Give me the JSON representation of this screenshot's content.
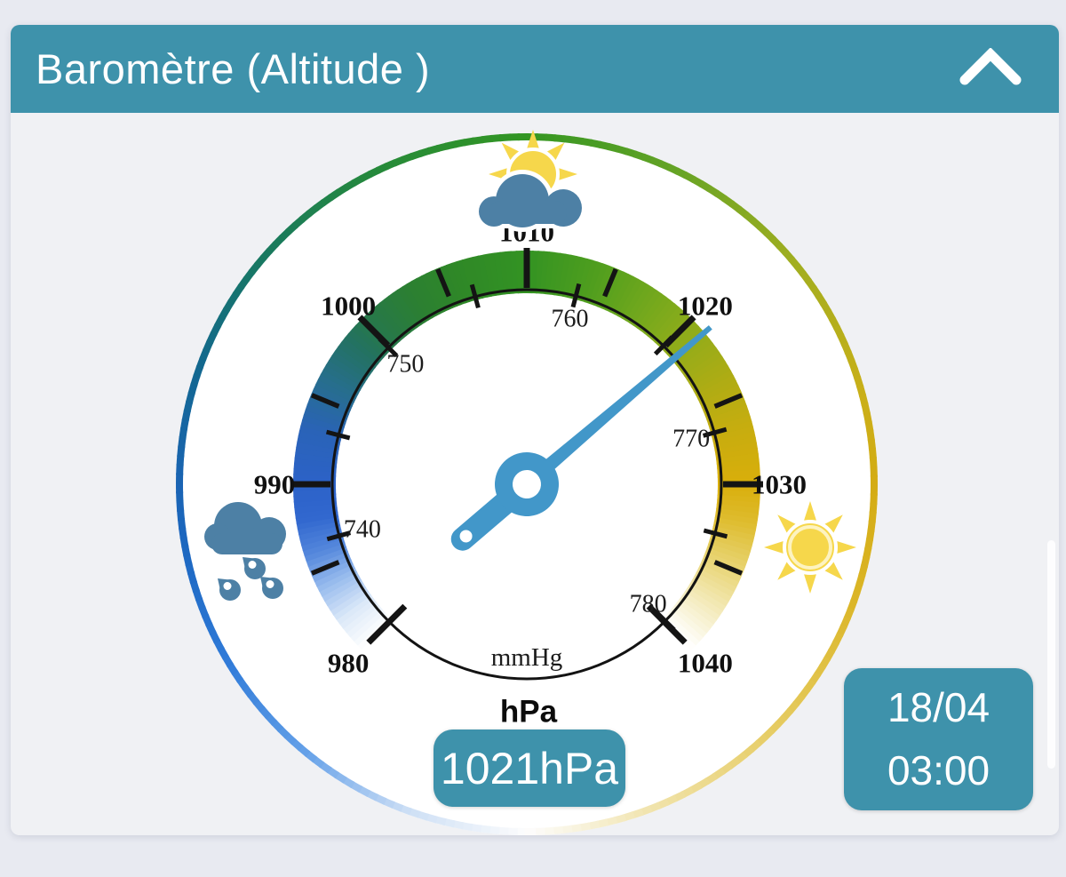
{
  "header": {
    "title": "Baromètre (Altitude )",
    "collapse_icon": "chevron-up"
  },
  "reading": {
    "value": "1021hPa"
  },
  "datetime": {
    "date": "18/04",
    "time": "03:00"
  },
  "gauge": {
    "outer_unit": "hPa",
    "inner_unit": "mmHg"
  },
  "weather_icons": {
    "top": "sun-behind-cloud",
    "left": "rain-cloud",
    "right": "sun"
  },
  "colors": {
    "accent_teal": "#3e92ab",
    "needle_blue": "#4297c9",
    "cloud_blue": "#4d80a5",
    "sun_yellow": "#f6d74b",
    "card_bg": "#f0f1f4",
    "page_bg": "#e8eaf1"
  },
  "chart_data": {
    "type": "gauge",
    "title": "Baromètre (Altitude )",
    "value_hpa": 1021,
    "value_display": "1021hPa",
    "timestamp": {
      "date": "18/04",
      "time": "03:00"
    },
    "outer_scale": {
      "unit": "hPa",
      "min": 980,
      "max": 1040,
      "labels": [
        980,
        990,
        1000,
        1010,
        1020,
        1030,
        1040
      ],
      "major_ticks": [
        990,
        1000,
        1010,
        1020,
        1030
      ],
      "end_ticks": [
        980,
        1040
      ],
      "minor_ticks": [
        985,
        995,
        1005,
        1015,
        1025,
        1035
      ]
    },
    "inner_scale": {
      "unit": "mmHg",
      "labels": [
        740,
        750,
        760,
        770,
        780
      ],
      "ticks": [
        740,
        745,
        750,
        755,
        760,
        765,
        770,
        775,
        780
      ],
      "mmhg_to_hpa": 1.3332239
    },
    "geometry": {
      "top_value": 1010,
      "deg_per_hpa": 4.5,
      "sweep_deg": 270
    },
    "needle_color": "#4297c9",
    "band_color_stops": [
      [
        -135,
        "#ffffff"
      ],
      [
        -126,
        "#dce9f8"
      ],
      [
        -117,
        "#9abdee"
      ],
      [
        -108,
        "#5588dc"
      ],
      [
        -99,
        "#3268cf"
      ],
      [
        -90,
        "#2c62c8"
      ],
      [
        -76,
        "#2a63b8"
      ],
      [
        -63,
        "#276e8e"
      ],
      [
        -50,
        "#23725f"
      ],
      [
        -45,
        "#26774d"
      ],
      [
        -32,
        "#2b7f33"
      ],
      [
        -18,
        "#2f8827"
      ],
      [
        0,
        "#339323"
      ],
      [
        18,
        "#4f9e1e"
      ],
      [
        32,
        "#6ea71d"
      ],
      [
        45,
        "#8bac1b"
      ],
      [
        60,
        "#aaac15"
      ],
      [
        75,
        "#c6ad0f"
      ],
      [
        90,
        "#d9ae0b"
      ],
      [
        100,
        "#debc2e"
      ],
      [
        112,
        "#e8d472"
      ],
      [
        122,
        "#f2e7b0"
      ],
      [
        135,
        "#ffffff"
      ]
    ],
    "ring_color_stops": [
      [
        -180,
        "#fdfdfd"
      ],
      [
        -160,
        "#cddff5"
      ],
      [
        -140,
        "#64a0e8"
      ],
      [
        -120,
        "#2f7ad8"
      ],
      [
        -100,
        "#1c67c0"
      ],
      [
        -90,
        "#1a64b4"
      ],
      [
        -70,
        "#13688f"
      ],
      [
        -50,
        "#187862"
      ],
      [
        -25,
        "#268a3a"
      ],
      [
        0,
        "#339623"
      ],
      [
        25,
        "#64a325"
      ],
      [
        50,
        "#a0ae20"
      ],
      [
        75,
        "#c9af18"
      ],
      [
        90,
        "#d4ac14"
      ],
      [
        110,
        "#dbb628"
      ],
      [
        135,
        "#e6cc63"
      ],
      [
        158,
        "#f0e2a8"
      ],
      [
        180,
        "#fdfdfd"
      ]
    ]
  }
}
